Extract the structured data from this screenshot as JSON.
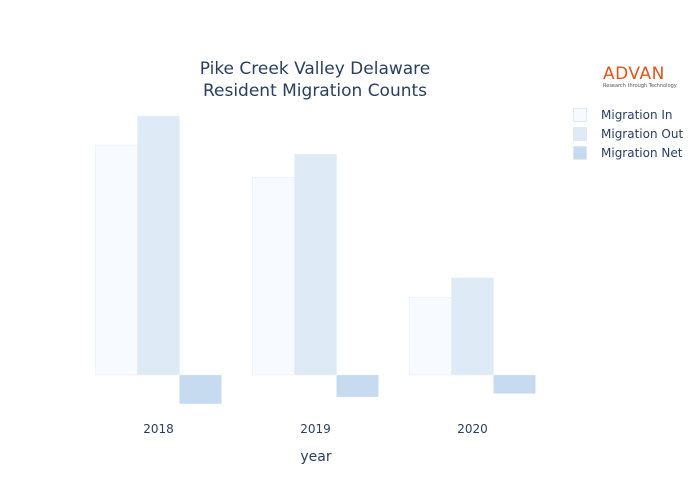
{
  "title_line1": "Pike Creek Valley Delaware",
  "title_line2": "Resident Migration Counts",
  "logo": {
    "name": "ADVAN",
    "tagline": "Research through Technology"
  },
  "chart_data": {
    "type": "bar",
    "title": "Pike Creek Valley Delaware Resident Migration Counts",
    "xlabel": "year",
    "ylabel": "",
    "categories": [
      "2018",
      "2019",
      "2020"
    ],
    "series": [
      {
        "name": "Migration In",
        "color": "#f7fafe",
        "values": [
          1990,
          1710,
          670
        ]
      },
      {
        "name": "Migration Out",
        "color": "#deebf7",
        "values": [
          2240,
          1910,
          840
        ]
      },
      {
        "name": "Migration Net",
        "color": "#c6dbef",
        "values": [
          -250,
          -190,
          -160
        ]
      }
    ],
    "y_grid": false,
    "y_tick_labels": false,
    "legend_position": "top-right"
  }
}
